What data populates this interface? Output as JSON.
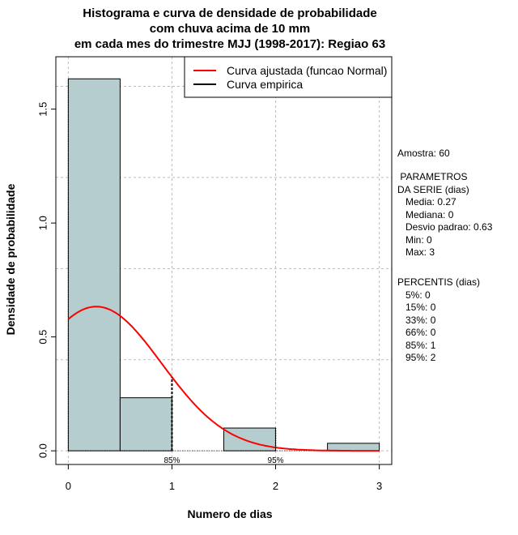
{
  "chart_data": {
    "type": "bar",
    "title": [
      "Histograma e curva de densidade de probabilidade",
      "com chuva acima de 10 mm",
      "em cada mes do trimestre MJJ (1998-2017): Regiao 63"
    ],
    "xlabel": "Numero de dias",
    "ylabel": "Densidade de probabilidade",
    "xlim": [
      -0.12,
      3.12
    ],
    "ylim": [
      -0.06,
      1.73
    ],
    "xticks": [
      "0",
      "1",
      "2",
      "3"
    ],
    "xtick_values": [
      0,
      1,
      2,
      3
    ],
    "yticks": [
      "0.0",
      "0.5",
      "1.0",
      "1.5"
    ],
    "ytick_values": [
      0,
      0.5,
      1.0,
      1.5
    ],
    "grid": true,
    "bins": [
      {
        "from": 0,
        "to": 0.5,
        "density": 1.633
      },
      {
        "from": 0.5,
        "to": 1,
        "density": 0.233
      },
      {
        "from": 1,
        "to": 1.5,
        "density": 0
      },
      {
        "from": 1.5,
        "to": 2,
        "density": 0.1
      },
      {
        "from": 2,
        "to": 2.5,
        "density": 0
      },
      {
        "from": 2.5,
        "to": 3,
        "density": 0.033
      }
    ],
    "normal_fit": {
      "mean": 0.27,
      "sd": 0.63
    },
    "percentile_markers": [
      {
        "label": "85%",
        "x": 1
      },
      {
        "label": "95%",
        "x": 2
      }
    ],
    "legend": {
      "placement": "top-right",
      "entries": [
        {
          "label": "Curva ajustada (funcao Normal)",
          "color": "#ff0000"
        },
        {
          "label": "Curva empirica",
          "color": "#000000"
        }
      ]
    },
    "bar_color": "#b5cdce"
  },
  "side": {
    "amostra": "Amostra: 60",
    "params": " PARAMETROS\nDA SERIE (dias)\n   Media: 0.27\n   Mediana: 0\n   Desvio padrao: 0.63\n   Min: 0\n   Max: 3",
    "percentis": "PERCENTIS (dias)\n   5%: 0\n   15%: 0\n   33%: 0\n   66%: 0\n   85%: 1\n   95%: 2"
  }
}
